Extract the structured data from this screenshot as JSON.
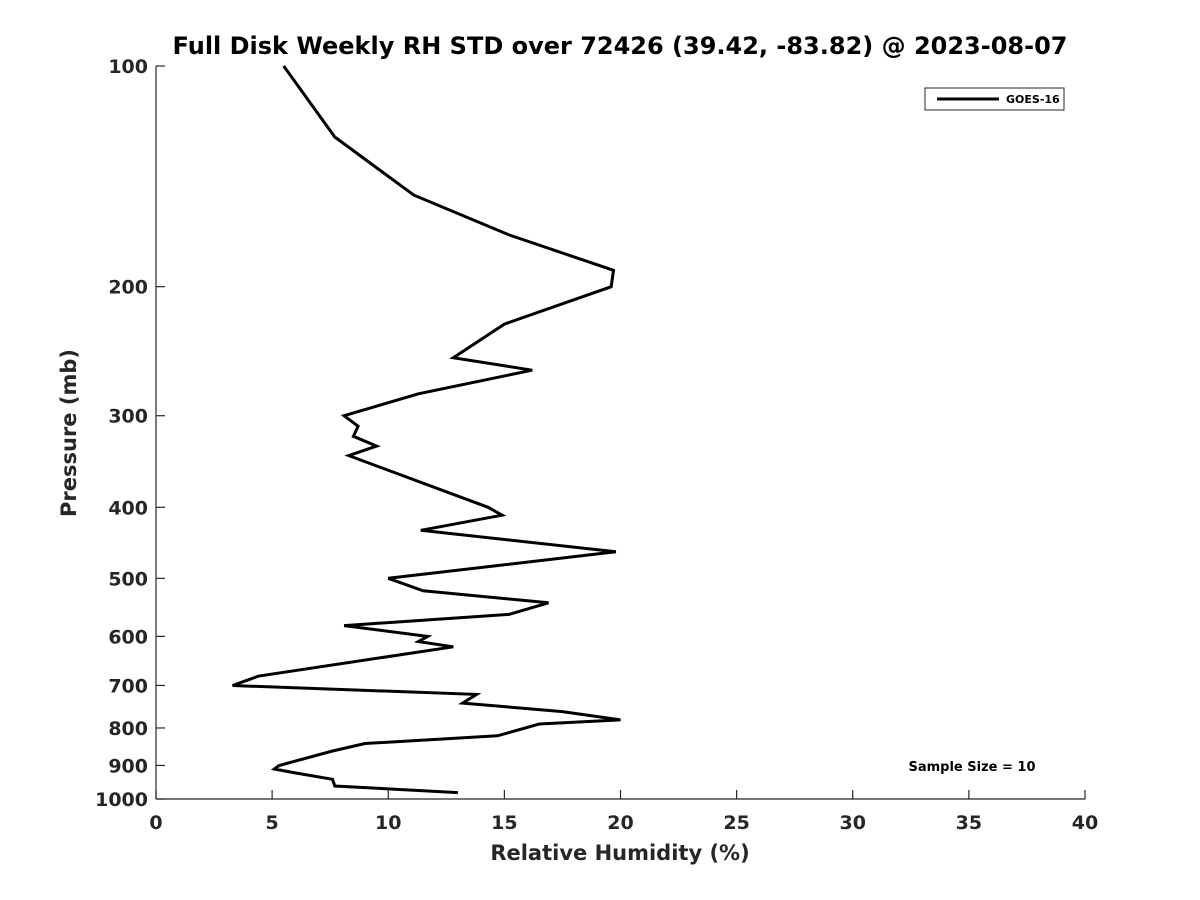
{
  "chart_data": {
    "type": "line",
    "title": "Full Disk Weekly RH STD over 72426 (39.42, -83.82) @ 2023-08-07",
    "xlabel": "Relative Humidity (%)",
    "ylabel": "Pressure (mb)",
    "xlim": [
      0,
      40
    ],
    "ylim": [
      100,
      1000
    ],
    "y_scale": "log",
    "y_reversed": true,
    "x_ticks": [
      "0",
      "5",
      "10",
      "15",
      "20",
      "25",
      "30",
      "35",
      "40"
    ],
    "y_ticks": [
      "100",
      "200",
      "300",
      "400",
      "500",
      "600",
      "700",
      "800",
      "900",
      "1000"
    ],
    "grid": false,
    "legend_position": "top-right",
    "series": [
      {
        "name": "GOES-16",
        "color": "#000000",
        "points": [
          [
            5.5,
            100
          ],
          [
            7.7,
            125
          ],
          [
            11.1,
            150
          ],
          [
            15.2,
            170
          ],
          [
            19.7,
            190
          ],
          [
            19.6,
            200
          ],
          [
            15.0,
            225
          ],
          [
            12.8,
            250
          ],
          [
            16.2,
            260
          ],
          [
            11.3,
            280
          ],
          [
            8.1,
            300
          ],
          [
            8.7,
            310
          ],
          [
            8.5,
            320
          ],
          [
            9.5,
            330
          ],
          [
            8.3,
            340
          ],
          [
            14.3,
            400
          ],
          [
            14.9,
            410
          ],
          [
            11.4,
            430
          ],
          [
            19.8,
            460
          ],
          [
            10.0,
            500
          ],
          [
            11.5,
            520
          ],
          [
            16.9,
            540
          ],
          [
            15.2,
            560
          ],
          [
            8.1,
            580
          ],
          [
            11.7,
            600
          ],
          [
            11.3,
            610
          ],
          [
            12.8,
            620
          ],
          [
            4.4,
            680
          ],
          [
            3.3,
            700
          ],
          [
            13.8,
            720
          ],
          [
            13.2,
            740
          ],
          [
            17.5,
            760
          ],
          [
            20.0,
            780
          ],
          [
            16.5,
            790
          ],
          [
            14.7,
            820
          ],
          [
            9.0,
            840
          ],
          [
            7.6,
            860
          ],
          [
            5.3,
            900
          ],
          [
            5.1,
            910
          ],
          [
            5.9,
            920
          ],
          [
            7.6,
            940
          ],
          [
            7.7,
            960
          ],
          [
            13.0,
            980
          ]
        ]
      }
    ],
    "annotation": "Sample Size = 10"
  }
}
